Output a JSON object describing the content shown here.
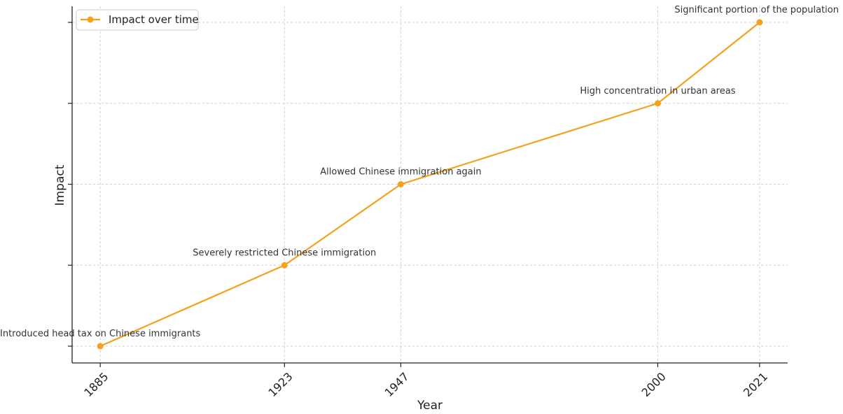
{
  "chart_data": {
    "type": "line",
    "title": "",
    "xlabel": "Year",
    "ylabel": "Impact",
    "x": [
      1885,
      1923,
      1947,
      2000,
      2021
    ],
    "x_tick_labels": [
      "1885",
      "1923",
      "1947",
      "2000",
      "2021"
    ],
    "x_tick_rotation_deg": 45,
    "y_ticks": [
      1,
      2,
      3,
      4,
      5
    ],
    "y_tick_labels_visible": false,
    "ylim": [
      0.8,
      5.2
    ],
    "grid": true,
    "legend_position": "top-left",
    "series": [
      {
        "name": "Impact over time",
        "color": "#f5a11b",
        "marker": "circle",
        "y": [
          1,
          2,
          3,
          4,
          5
        ]
      }
    ],
    "annotations": [
      {
        "x": 1885,
        "y": 1,
        "text": "Introduced head tax on Chinese immigrants"
      },
      {
        "x": 1923,
        "y": 2,
        "text": "Severely restricted Chinese immigration"
      },
      {
        "x": 1947,
        "y": 3,
        "text": "Allowed Chinese immigration again"
      },
      {
        "x": 2000,
        "y": 4,
        "text": "High concentration in urban areas"
      },
      {
        "x": 2021,
        "y": 5,
        "text": "Significant portion of the population"
      }
    ]
  }
}
